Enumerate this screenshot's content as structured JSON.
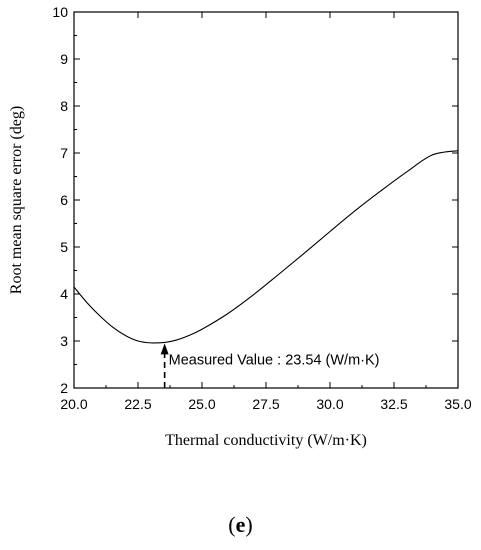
{
  "chart_data": {
    "type": "line",
    "xlabel": "Thermal conductivity (W/m·K)",
    "ylabel": "Root mean square error (deg)",
    "xlim": [
      20.0,
      35.0
    ],
    "ylim": [
      2,
      10
    ],
    "x_ticks": [
      "20.0",
      "22.5",
      "25.0",
      "27.5",
      "30.0",
      "32.5",
      "35.0"
    ],
    "y_ticks": [
      "2",
      "3",
      "4",
      "5",
      "6",
      "7",
      "8",
      "9",
      "10"
    ],
    "grid": false,
    "series": [
      {
        "x": [
          20.0,
          20.5,
          21.0,
          21.5,
          22.0,
          22.5,
          23.0,
          23.54,
          24.0,
          24.5,
          25.0,
          26.0,
          27.0,
          28.0,
          29.0,
          30.0,
          31.0,
          32.0,
          33.0,
          34.0,
          35.0
        ],
        "y": [
          4.15,
          3.82,
          3.54,
          3.3,
          3.12,
          3.0,
          2.96,
          2.97,
          3.02,
          3.12,
          3.25,
          3.58,
          3.98,
          4.42,
          4.87,
          5.33,
          5.78,
          6.2,
          6.6,
          6.96,
          7.05
        ]
      }
    ],
    "annotation": {
      "text": "Measured Value : 23.54 (W/m·K)",
      "x": 23.54,
      "y": 2.97
    }
  },
  "panel_label": "e"
}
